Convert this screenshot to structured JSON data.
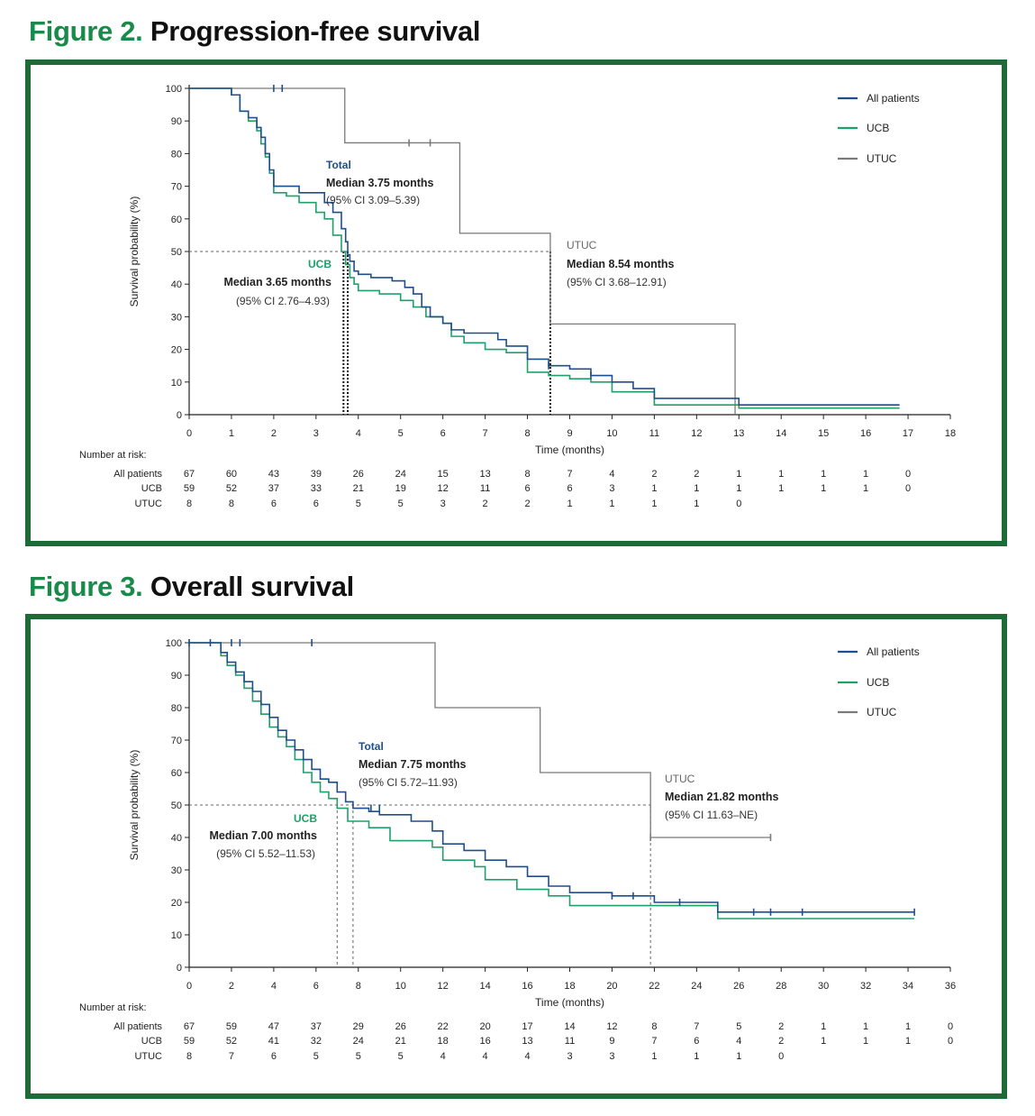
{
  "figures": [
    {
      "label": "Figure 2.",
      "title": "Progression-free survival",
      "legend": [
        "All patients",
        "UCB",
        "UTUC"
      ],
      "annotations": {
        "total": {
          "name": "Total",
          "median": "Median 3.75 months",
          "ci": "(95% CI 3.09–5.39)"
        },
        "ucb": {
          "name": "UCB",
          "median": "Median 3.65 months",
          "ci": "(95% CI 2.76–4.93)"
        },
        "utuc": {
          "name": "UTUC",
          "median": "Median 8.54 months",
          "ci": "(95% CI 3.68–12.91)"
        }
      },
      "risk_table": {
        "title": "Number at risk:",
        "rows": [
          {
            "label": "All patients",
            "values": [
              "67",
              "60",
              "43",
              "39",
              "26",
              "24",
              "15",
              "13",
              "8",
              "7",
              "4",
              "2",
              "2",
              "1",
              "1",
              "1",
              "1",
              "0"
            ]
          },
          {
            "label": "UCB",
            "values": [
              "59",
              "52",
              "37",
              "33",
              "21",
              "19",
              "12",
              "11",
              "6",
              "6",
              "3",
              "1",
              "1",
              "1",
              "1",
              "1",
              "1",
              "0"
            ]
          },
          {
            "label": "UTUC",
            "values": [
              "8",
              "8",
              "6",
              "6",
              "5",
              "5",
              "3",
              "2",
              "2",
              "1",
              "1",
              "1",
              "1",
              "0"
            ]
          }
        ]
      }
    },
    {
      "label": "Figure 3.",
      "title": "Overall survival",
      "legend": [
        "All patients",
        "UCB",
        "UTUC"
      ],
      "annotations": {
        "total": {
          "name": "Total",
          "median": "Median 7.75 months",
          "ci": "(95% CI 5.72–11.93)"
        },
        "ucb": {
          "name": "UCB",
          "median": "Median 7.00 months",
          "ci": "(95% CI 5.52–11.53)"
        },
        "utuc": {
          "name": "UTUC",
          "median": "Median 21.82 months",
          "ci": "(95% CI 11.63–NE)"
        }
      },
      "risk_table": {
        "title": "Number at risk:",
        "rows": [
          {
            "label": "All patients",
            "values": [
              "67",
              "59",
              "47",
              "37",
              "29",
              "26",
              "22",
              "20",
              "17",
              "14",
              "12",
              "8",
              "7",
              "5",
              "2",
              "1",
              "1",
              "1",
              "0"
            ]
          },
          {
            "label": "UCB",
            "values": [
              "59",
              "52",
              "41",
              "32",
              "24",
              "21",
              "18",
              "16",
              "13",
              "11",
              "9",
              "7",
              "6",
              "4",
              "2",
              "1",
              "1",
              "1",
              "0"
            ]
          },
          {
            "label": "UTUC",
            "values": [
              "8",
              "7",
              "6",
              "5",
              "5",
              "5",
              "4",
              "4",
              "4",
              "3",
              "3",
              "1",
              "1",
              "1",
              "0"
            ]
          }
        ]
      }
    }
  ],
  "colors": {
    "all": "#1f4e8c",
    "ucb": "#1fa06b",
    "utuc": "#7a7a7a",
    "frame": "#1e6b37",
    "title_num": "#1a8a4a"
  },
  "chart_data": [
    {
      "type": "line",
      "step": true,
      "xlabel": "Time (months)",
      "ylabel": "Survival probability (%)",
      "xlim": [
        0,
        18
      ],
      "ylim": [
        0,
        100
      ],
      "xticks": [
        "0",
        "1",
        "2",
        "3",
        "4",
        "5",
        "6",
        "7",
        "8",
        "9",
        "10",
        "11",
        "12",
        "13",
        "14",
        "15",
        "16",
        "17",
        "18"
      ],
      "yticks": [
        "0",
        "10",
        "20",
        "30",
        "40",
        "50",
        "60",
        "70",
        "80",
        "90",
        "100"
      ],
      "reference_line": 50,
      "medians": {
        "All patients": 3.75,
        "UCB": 3.65,
        "UTUC": 8.54
      },
      "legend_position": "top-right",
      "series": [
        {
          "name": "All patients",
          "key": "all",
          "x": [
            0,
            1,
            1.2,
            1.4,
            1.6,
            1.7,
            1.8,
            1.9,
            2,
            2.1,
            2.3,
            2.6,
            3,
            3.2,
            3.4,
            3.6,
            3.7,
            3.75,
            3.8,
            3.9,
            4,
            4.3,
            4.8,
            5.1,
            5.3,
            5.5,
            5.7,
            6,
            6.2,
            6.5,
            7.3,
            7.5,
            8,
            8.5,
            9,
            9.5,
            10,
            10.5,
            11,
            13,
            16.8
          ],
          "y": [
            100,
            98,
            93,
            91,
            88,
            85,
            80,
            75,
            70,
            70,
            70,
            68,
            68,
            65,
            62,
            57,
            53,
            49,
            47,
            44,
            43,
            42,
            41,
            39,
            37,
            33,
            30,
            28,
            26,
            25,
            23,
            21,
            17,
            15,
            14,
            12,
            10,
            8,
            5,
            3,
            3
          ],
          "censored": [
            [
              2,
              100
            ],
            [
              2.2,
              100
            ],
            [
              8.5,
              15
            ],
            [
              9.5,
              12
            ]
          ]
        },
        {
          "name": "UCB",
          "key": "ucb",
          "x": [
            0,
            1,
            1.2,
            1.4,
            1.6,
            1.7,
            1.8,
            1.9,
            2,
            2.3,
            2.6,
            3,
            3.2,
            3.4,
            3.6,
            3.7,
            3.8,
            3.9,
            4,
            4.5,
            5,
            5.3,
            5.6,
            6,
            6.2,
            6.5,
            7,
            7.5,
            8,
            8.5,
            9,
            9.5,
            10,
            11,
            13,
            16.8
          ],
          "y": [
            100,
            98,
            93,
            90,
            87,
            83,
            79,
            74,
            68,
            67,
            65,
            62,
            60,
            55,
            50,
            46,
            42,
            40,
            38,
            37,
            35,
            33,
            30,
            28,
            24,
            22,
            20,
            19,
            13,
            12,
            11,
            10,
            7,
            3,
            2,
            2
          ],
          "censored": []
        },
        {
          "name": "UTUC",
          "key": "utuc",
          "x": [
            0,
            3.68,
            6.4,
            8.54,
            12.91
          ],
          "y": [
            100,
            83.3,
            55.6,
            27.8,
            0
          ],
          "censored": [
            [
              5.2,
              83.3
            ],
            [
              5.7,
              83.3
            ]
          ]
        }
      ]
    },
    {
      "type": "line",
      "step": true,
      "xlabel": "Time (months)",
      "ylabel": "Survival probability (%)",
      "xlim": [
        0,
        36
      ],
      "ylim": [
        0,
        100
      ],
      "xticks": [
        "0",
        "2",
        "4",
        "6",
        "8",
        "10",
        "12",
        "14",
        "16",
        "18",
        "20",
        "22",
        "24",
        "26",
        "28",
        "30",
        "32",
        "34",
        "36"
      ],
      "yticks": [
        "0",
        "10",
        "20",
        "30",
        "40",
        "50",
        "60",
        "70",
        "80",
        "90",
        "100"
      ],
      "reference_line": 50,
      "medians": {
        "All patients": 7.75,
        "UCB": 7.0,
        "UTUC": 21.82
      },
      "legend_position": "top-right",
      "series": [
        {
          "name": "All patients",
          "key": "all",
          "x": [
            0,
            1.5,
            1.8,
            2.2,
            2.6,
            3,
            3.4,
            3.8,
            4.2,
            4.6,
            5,
            5.4,
            5.8,
            6.2,
            6.6,
            7,
            7.4,
            7.75,
            8.5,
            9,
            10.5,
            11.5,
            12,
            13,
            14,
            15,
            16,
            17,
            18,
            20,
            22,
            25,
            34.3
          ],
          "y": [
            100,
            97,
            94,
            91,
            88,
            85,
            81,
            77,
            73,
            70,
            67,
            64,
            61,
            58,
            57,
            54,
            51,
            49,
            48,
            47,
            45,
            42,
            38,
            36,
            33,
            31,
            28,
            25,
            23,
            22,
            20,
            17,
            17
          ],
          "censored": [
            [
              0,
              100
            ],
            [
              1,
              100
            ],
            [
              2,
              100
            ],
            [
              2.4,
              100
            ],
            [
              5.8,
              100
            ],
            [
              8.6,
              49
            ],
            [
              9,
              49
            ],
            [
              20,
              22
            ],
            [
              21,
              22
            ],
            [
              23.2,
              20
            ],
            [
              26.7,
              17
            ],
            [
              27.5,
              17
            ],
            [
              29,
              17
            ],
            [
              34.3,
              17
            ]
          ]
        },
        {
          "name": "UCB",
          "key": "ucb",
          "x": [
            0,
            1.5,
            1.8,
            2.2,
            2.6,
            3,
            3.4,
            3.8,
            4.2,
            4.6,
            5,
            5.4,
            5.8,
            6.2,
            6.6,
            7,
            7.5,
            8.5,
            9.5,
            11.5,
            12,
            13.5,
            14,
            15.5,
            17,
            18,
            22,
            25,
            34.3
          ],
          "y": [
            100,
            96,
            93,
            90,
            86,
            82,
            78,
            74,
            71,
            68,
            64,
            60,
            57,
            54,
            52,
            49,
            45,
            43,
            39,
            37,
            33,
            31,
            27,
            24,
            22,
            19,
            19,
            15,
            15
          ],
          "censored": []
        },
        {
          "name": "UTUC",
          "key": "utuc",
          "x": [
            0,
            11.63,
            16.6,
            21.82,
            27.5
          ],
          "y": [
            100,
            80,
            60,
            40,
            40
          ],
          "censored": [
            [
              21.82,
              40
            ],
            [
              27.5,
              40
            ]
          ]
        }
      ]
    }
  ]
}
